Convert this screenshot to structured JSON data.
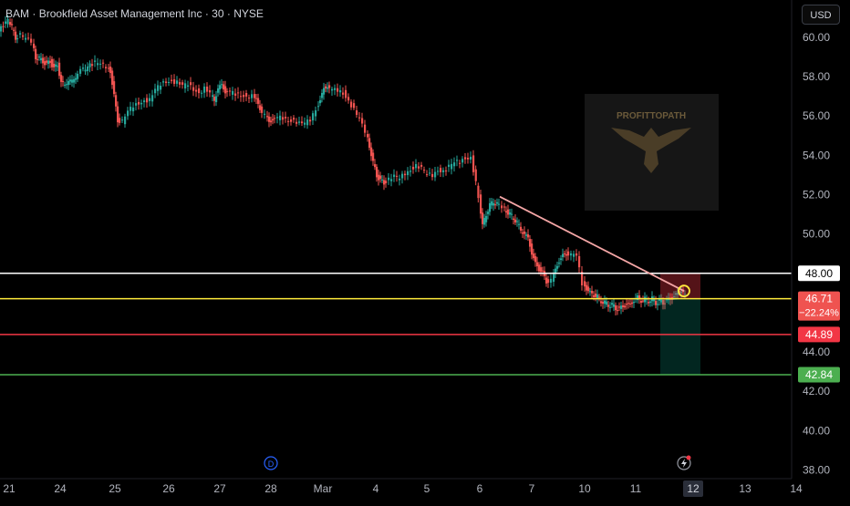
{
  "header": {
    "symbol": "BAM",
    "name": "Brookfield Asset Management Inc",
    "interval": "30",
    "exchange": "NYSE",
    "sep": "·"
  },
  "currency_button": "USD",
  "logo_text": "PROFITTOPATH",
  "event_markers": {
    "dividend": "D"
  },
  "colors": {
    "up": "#26a69a",
    "down": "#ef5350",
    "background": "#000000",
    "axis_text": "#b2b5be",
    "resistance": "#ffffff",
    "entry": "#ffeb3b",
    "stop": "#f23645",
    "target": "#4caf50",
    "trendline": "#f4a6a6"
  },
  "chart_data": {
    "type": "candlestick",
    "title": "BAM · Brookfield Asset Management Inc · 30 · NYSE",
    "y_axis": {
      "ticks": [
        38,
        40,
        42,
        44,
        46,
        48,
        50,
        52,
        54,
        56,
        58,
        60
      ],
      "tick_labels": [
        "38.00",
        "40.00",
        "42.00",
        "44.00",
        "46.00",
        "48.00",
        "50.00",
        "52.00",
        "54.00",
        "56.00",
        "58.00",
        "60.00"
      ],
      "range": [
        37.0,
        61.9
      ],
      "position": "right"
    },
    "x_axis": {
      "tick_labels": [
        "21",
        "24",
        "25",
        "26",
        "27",
        "28",
        "Mar",
        "4",
        "5",
        "6",
        "7",
        "10",
        "11",
        "12",
        "13",
        "14"
      ],
      "highlighted": "12"
    },
    "grid": false,
    "price_path": [
      [
        0,
        60.3
      ],
      [
        5,
        60.6
      ],
      [
        10,
        60.9
      ],
      [
        14,
        60.5
      ],
      [
        18,
        60.0
      ],
      [
        24,
        60.1
      ],
      [
        30,
        59.9
      ],
      [
        36,
        59.8
      ],
      [
        40,
        59.0
      ],
      [
        44,
        58.9
      ],
      [
        48,
        58.8
      ],
      [
        52,
        58.6
      ],
      [
        56,
        58.8
      ],
      [
        60,
        58.4
      ],
      [
        64,
        58.6
      ],
      [
        68,
        57.7
      ],
      [
        72,
        57.6
      ],
      [
        76,
        57.8
      ],
      [
        80,
        57.8
      ],
      [
        84,
        58.0
      ],
      [
        90,
        58.3
      ],
      [
        95,
        58.4
      ],
      [
        100,
        58.6
      ],
      [
        106,
        58.7
      ],
      [
        112,
        58.6
      ],
      [
        118,
        58.5
      ],
      [
        122,
        58.3
      ],
      [
        126,
        57.0
      ],
      [
        130,
        55.8
      ],
      [
        136,
        55.7
      ],
      [
        142,
        56.2
      ],
      [
        148,
        56.5
      ],
      [
        154,
        56.7
      ],
      [
        160,
        56.8
      ],
      [
        166,
        56.8
      ],
      [
        172,
        57.3
      ],
      [
        178,
        57.6
      ],
      [
        184,
        57.8
      ],
      [
        190,
        57.8
      ],
      [
        196,
        57.7
      ],
      [
        202,
        57.5
      ],
      [
        208,
        57.6
      ],
      [
        214,
        57.4
      ],
      [
        220,
        57.2
      ],
      [
        226,
        57.4
      ],
      [
        232,
        57.1
      ],
      [
        236,
        56.8
      ],
      [
        240,
        57.4
      ],
      [
        244,
        57.6
      ],
      [
        248,
        57.2
      ],
      [
        254,
        57.2
      ],
      [
        260,
        57.1
      ],
      [
        266,
        57.1
      ],
      [
        272,
        57.0
      ],
      [
        278,
        57.0
      ],
      [
        282,
        56.8
      ],
      [
        286,
        56.4
      ],
      [
        292,
        56.0
      ],
      [
        296,
        55.7
      ],
      [
        300,
        55.8
      ],
      [
        306,
        55.9
      ],
      [
        312,
        55.9
      ],
      [
        318,
        55.8
      ],
      [
        324,
        55.8
      ],
      [
        330,
        55.6
      ],
      [
        336,
        55.6
      ],
      [
        342,
        55.8
      ],
      [
        348,
        56.4
      ],
      [
        352,
        56.8
      ],
      [
        356,
        57.4
      ],
      [
        360,
        57.5
      ],
      [
        366,
        57.3
      ],
      [
        372,
        57.3
      ],
      [
        378,
        57.2
      ],
      [
        384,
        56.8
      ],
      [
        390,
        56.3
      ],
      [
        396,
        55.8
      ],
      [
        402,
        55.2
      ],
      [
        406,
        54.5
      ],
      [
        410,
        53.6
      ],
      [
        414,
        53.0
      ],
      [
        418,
        52.7
      ],
      [
        422,
        52.6
      ],
      [
        428,
        52.8
      ],
      [
        434,
        52.9
      ],
      [
        440,
        52.8
      ],
      [
        446,
        53.1
      ],
      [
        452,
        53.3
      ],
      [
        458,
        53.5
      ],
      [
        464,
        53.3
      ],
      [
        470,
        53.0
      ],
      [
        476,
        53.0
      ],
      [
        482,
        53.3
      ],
      [
        488,
        53.2
      ],
      [
        494,
        53.4
      ],
      [
        500,
        53.6
      ],
      [
        506,
        53.7
      ],
      [
        512,
        53.9
      ],
      [
        518,
        53.9
      ],
      [
        526,
        51.9
      ],
      [
        530,
        50.4
      ],
      [
        534,
        51.0
      ],
      [
        538,
        51.5
      ],
      [
        542,
        51.6
      ],
      [
        546,
        51.6
      ],
      [
        552,
        51.3
      ],
      [
        556,
        51.2
      ],
      [
        560,
        51.0
      ],
      [
        564,
        50.8
      ],
      [
        568,
        50.6
      ],
      [
        572,
        50.2
      ],
      [
        576,
        50.0
      ],
      [
        580,
        49.8
      ],
      [
        584,
        49.0
      ],
      [
        588,
        48.5
      ],
      [
        592,
        48.2
      ],
      [
        596,
        48.0
      ],
      [
        600,
        47.6
      ],
      [
        606,
        47.6
      ],
      [
        610,
        48.2
      ],
      [
        614,
        48.6
      ],
      [
        618,
        48.9
      ],
      [
        622,
        49.0
      ],
      [
        628,
        48.9
      ],
      [
        634,
        48.9
      ],
      [
        640,
        47.5
      ],
      [
        644,
        47.2
      ],
      [
        648,
        47.0
      ],
      [
        652,
        46.9
      ],
      [
        656,
        46.8
      ],
      [
        660,
        46.6
      ],
      [
        664,
        46.5
      ],
      [
        668,
        46.4
      ],
      [
        672,
        46.4
      ],
      [
        676,
        46.2
      ],
      [
        680,
        46.2
      ],
      [
        684,
        46.3
      ],
      [
        688,
        46.4
      ],
      [
        692,
        46.4
      ],
      [
        696,
        46.6
      ],
      [
        700,
        46.8
      ],
      [
        704,
        46.6
      ],
      [
        708,
        46.7
      ],
      [
        712,
        46.6
      ],
      [
        716,
        46.7
      ],
      [
        720,
        46.5
      ],
      [
        724,
        46.6
      ],
      [
        728,
        46.5
      ],
      [
        732,
        46.6
      ],
      [
        736,
        46.7
      ],
      [
        740,
        46.8
      ],
      [
        744,
        47.0
      ],
      [
        748,
        47.1
      ],
      [
        752,
        46.9
      ]
    ],
    "levels": [
      {
        "price": 48.0,
        "label": "48.00",
        "color": "#ffffff"
      },
      {
        "price": 46.71,
        "label": "46.71",
        "sublabel": "−22.24%",
        "color": "#ffeb3b"
      },
      {
        "price": 44.89,
        "label": "44.89",
        "color": "#f23645"
      },
      {
        "price": 42.84,
        "label": "42.84",
        "color": "#4caf50"
      }
    ],
    "trendline": {
      "from": {
        "date": "6",
        "price": 51.9
      },
      "to": {
        "date": "12",
        "price": 47.1
      }
    },
    "position": {
      "entry": 46.71,
      "stop": 48.0,
      "target": 42.84,
      "start": "11",
      "end": "12"
    }
  }
}
